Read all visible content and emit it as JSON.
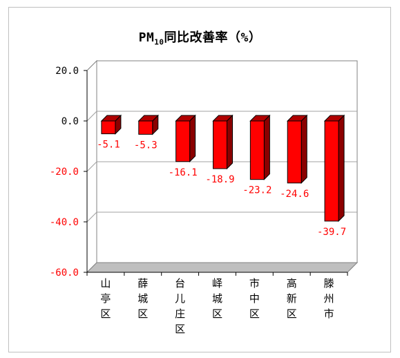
{
  "chart_data": {
    "type": "bar",
    "title_main": "PM",
    "title_sub": "10",
    "title_rest": "同比改善率（%）",
    "categories": [
      "山亭区",
      "薛城区",
      "台儿庄区",
      "峄城区",
      "市中区",
      "高新区",
      "滕州市"
    ],
    "values": [
      -5.1,
      -5.3,
      -16.1,
      -18.9,
      -23.2,
      -24.6,
      -39.7
    ],
    "value_labels": [
      "-5.1",
      "-5.3",
      "-16.1",
      "-18.9",
      "-23.2",
      "-24.6",
      "-39.7"
    ],
    "y_ticks": [
      20,
      0,
      -20,
      -40,
      -60
    ],
    "y_tick_labels": [
      "20.0",
      "0.0",
      "-20.0",
      "-40.0",
      "-60.0"
    ],
    "ylim": [
      -60,
      20
    ],
    "grid": true,
    "colors": {
      "bar_front": "#ff0000",
      "bar_side": "#8b0000",
      "bar_top": "#b00000",
      "positive_tick": "#000000",
      "negative_tick": "#ff0000",
      "data_label": "#ff0000",
      "floor": "#bfbfbf",
      "grid": "#a0a0a0"
    }
  }
}
